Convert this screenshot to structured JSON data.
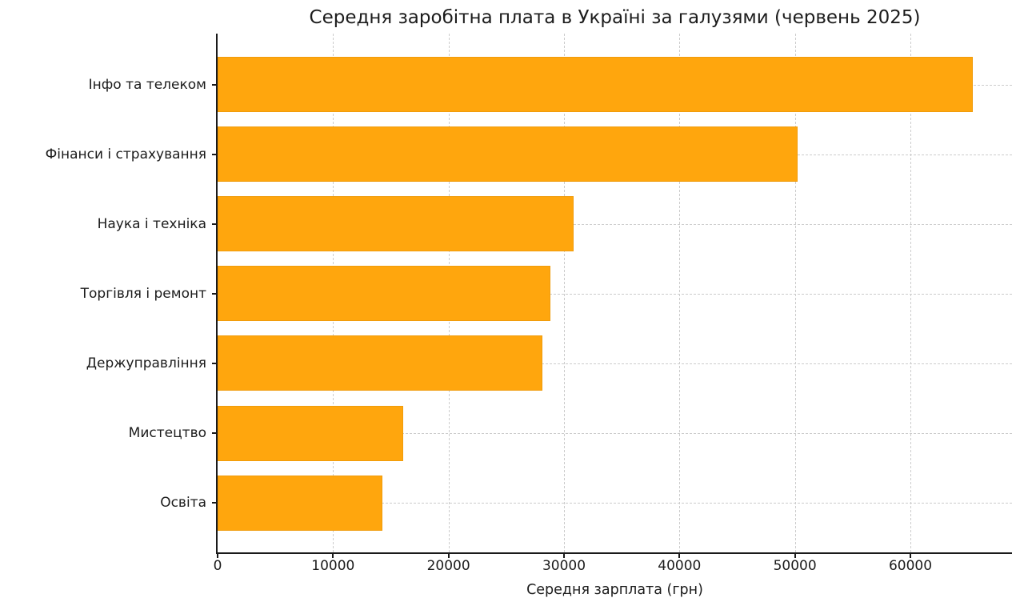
{
  "chart_data": {
    "type": "bar",
    "orientation": "horizontal",
    "title": "Середня заробітна плата в Україні за галузями (червень 2025)",
    "xlabel": "Середня зарплата (грн)",
    "ylabel": "",
    "categories": [
      "Інфо та телеком",
      "Фінанси і страхування",
      "Наука і техніка",
      "Торгівля і ремонт",
      "Держуправління",
      "Мистецтво",
      "Освіта"
    ],
    "values": [
      65400,
      50200,
      30800,
      28800,
      28100,
      16100,
      14300
    ],
    "xticks": [
      0,
      10000,
      20000,
      30000,
      40000,
      50000,
      60000
    ],
    "xlim": [
      0,
      68800
    ],
    "grid": true,
    "grid_line_style": "dashed",
    "legend_position": "none",
    "colors": {
      "bar_fill": "#ffa60d",
      "bar_edge": "#f09c0c",
      "grid_line": "#cccccc",
      "axis_line": "#1a1a1a",
      "text": "#1c1c1c",
      "background": "#ffffff"
    }
  }
}
